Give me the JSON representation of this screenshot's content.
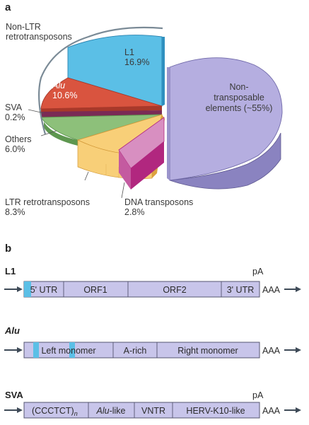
{
  "panel_a": {
    "label": "a",
    "chart_data": {
      "type": "pie",
      "title": "",
      "slices": [
        {
          "name": "L1",
          "value": 16.9,
          "display_value": "16.9%",
          "color": "#5bbfe6",
          "side_color": "#2f90bf"
        },
        {
          "name": "Alu",
          "value": 10.6,
          "display_value": "10.6%",
          "color": "#d9543f",
          "side_color": "#a8392a"
        },
        {
          "name": "SVA",
          "value": 0.2,
          "display_value": "0.2%",
          "color": "#7a2a55",
          "side_color": "#4f1a37"
        },
        {
          "name": "Others",
          "value": 6.0,
          "display_value": "6.0%",
          "color": "#8dc07a",
          "side_color": "#5e9750"
        },
        {
          "name": "LTR retrotransposons",
          "value": 8.3,
          "display_value": "8.3%",
          "color": "#f8cf78",
          "side_color": "#dca23f"
        },
        {
          "name": "DNA transposons",
          "value": 2.8,
          "display_value": "2.8%",
          "color": "#d88fc1",
          "side_color": "#b1277f"
        },
        {
          "name": "Non-transposable elements",
          "value": 55,
          "display_value": "(~55%)",
          "color": "#b5aee0",
          "side_color": "#8a83c0"
        }
      ],
      "group_bracket": {
        "name": "Non-LTR retrotransposons",
        "members": [
          "L1",
          "Alu",
          "SVA"
        ]
      }
    },
    "labels": {
      "non_ltr_line1": "Non-LTR",
      "non_ltr_line2": "retrotransposons",
      "l1_name": "L1",
      "l1_value": "16.9%",
      "alu_name": "Alu",
      "alu_value": "10.6%",
      "sva_name": "SVA",
      "sva_value": "0.2%",
      "others_name": "Others",
      "others_value": "6.0%",
      "ltr_name": "LTR retrotransposons",
      "ltr_value": "8.3%",
      "dna_name": "DNA transposons",
      "dna_value": "2.8%",
      "nontransp_line1": "Non-",
      "nontransp_line2": "transposable",
      "nontransp_line3": "elements (~55%)"
    }
  },
  "panel_b": {
    "label": "b",
    "elements": [
      {
        "name": "L1",
        "italic": false,
        "pA": "pA",
        "tail": "AAA",
        "segments": [
          "5' UTR",
          "ORF1",
          "ORF2",
          "3' UTR"
        ]
      },
      {
        "name": "Alu",
        "italic": true,
        "pA": "",
        "tail": "AAA",
        "segments": [
          "Left monomer",
          "A-rich",
          "Right monomer"
        ]
      },
      {
        "name": "SVA",
        "italic": false,
        "pA": "pA",
        "tail": "AAA",
        "segments": [
          "(CCCTCT)",
          "n",
          "Alu",
          "-like",
          "VNTR",
          "HERV-K10-like"
        ]
      }
    ]
  },
  "colors": {
    "box_fill": "#c8c5ea",
    "box_stroke": "#555570",
    "accent_blue": "#5bbfe6",
    "arrow": "#3e4a57"
  }
}
